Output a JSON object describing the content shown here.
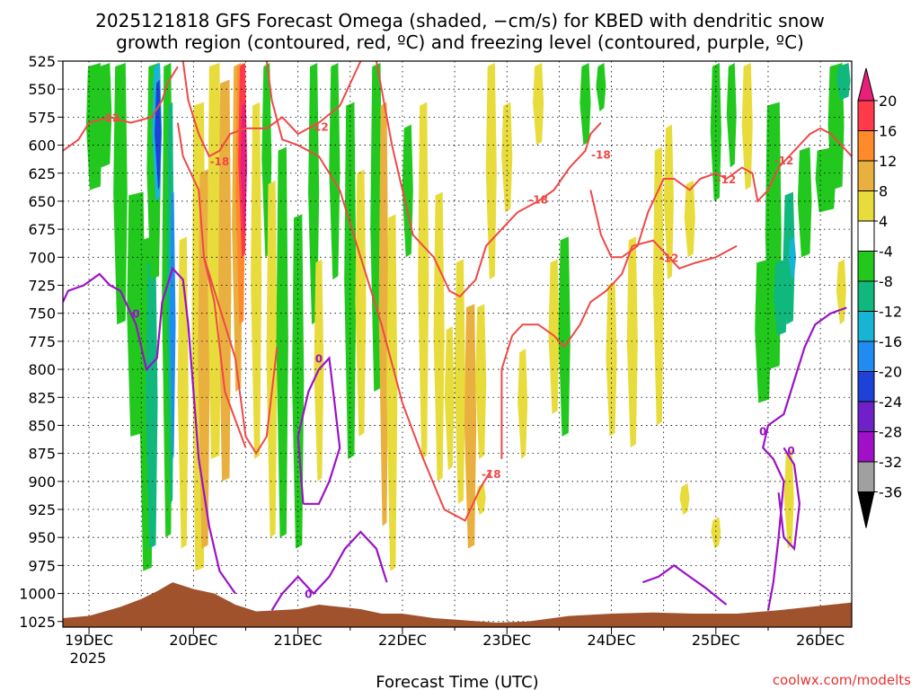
{
  "chart_data": {
    "type": "heatmap",
    "title_line1": "2025121818 GFS Forecast Omega (shaded, −cm/s) for KBED with dendritic snow",
    "title_line2": "growth region (contoured, red, ºC) and freezing level (contoured, purple, ºC)",
    "xlabel": "Forecast Time (UTC)",
    "credit": "coolwx.com/modelts",
    "x_ticks": [
      "19DEC",
      "20DEC",
      "21DEC",
      "22DEC",
      "23DEC",
      "24DEC",
      "25DEC",
      "26DEC"
    ],
    "x_year": "2025",
    "y_ticks": [
      525,
      550,
      575,
      600,
      625,
      650,
      675,
      700,
      725,
      750,
      775,
      800,
      825,
      850,
      875,
      900,
      925,
      950,
      975,
      1000,
      1025
    ],
    "ylim": [
      525,
      1030
    ],
    "xlim_days": [
      18.75,
      26.3
    ],
    "grid": "dotted",
    "colorbar_labels": [
      "20",
      "16",
      "12",
      "8",
      "4",
      "-4",
      "-8",
      "-12",
      "-16",
      "-20",
      "-24",
      "-28",
      "-32",
      "-36"
    ],
    "colors": {
      "c_gt20": "#e8207a",
      "c16_20": "#ff3a4a",
      "c12_16": "#ff8a2a",
      "c8_12": "#e9b040",
      "c4_8": "#e8dc3c",
      "cwhite": "#ffffff",
      "cm4_m8": "#22c81e",
      "cm8_m12": "#10b87e",
      "cm12_m16": "#18b4d4",
      "cm16_m20": "#1e8cf0",
      "cm20_m24": "#1e42d8",
      "cm24_m28": "#7020c8",
      "cm28_m32": "#a010c8",
      "cm32_m36": "#a0a0a0",
      "c_lt36": "#000000",
      "terrain": "#a0522d",
      "dendritic": "#f04848",
      "freezing": "#9a12c8"
    },
    "red_contour_labels": [
      "-12",
      "-18",
      "-12",
      "-18",
      "-18",
      "-12",
      "-18",
      "-12",
      "-12"
    ],
    "purple_contour_labels": [
      "0",
      "0",
      "0",
      "0",
      "0"
    ]
  }
}
